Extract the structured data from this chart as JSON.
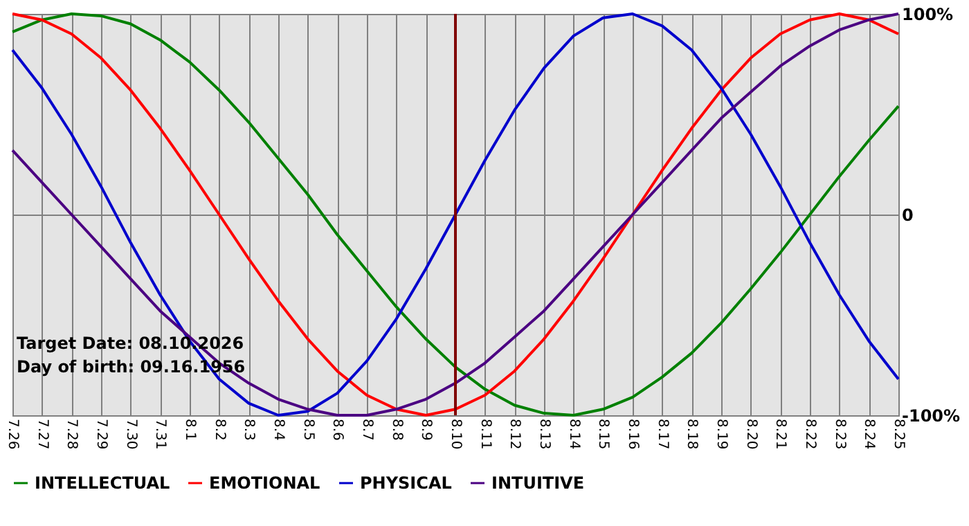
{
  "chart_data": {
    "type": "line",
    "categories": [
      "7.26",
      "7.27",
      "7.28",
      "7.29",
      "7.30",
      "7.31",
      "8.1",
      "8.2",
      "8.3",
      "8.4",
      "8.5",
      "8.6",
      "8.7",
      "8.8",
      "8.9",
      "8.10",
      "8.11",
      "8.12",
      "8.13",
      "8.14",
      "8.15",
      "8.16",
      "8.17",
      "8.18",
      "8.19",
      "8.20",
      "8.21",
      "8.22",
      "8.23",
      "8.24",
      "8.25"
    ],
    "series": [
      {
        "name": "INTELLECTUAL",
        "color": "#008000",
        "values": [
          91,
          97,
          100,
          99,
          95,
          87,
          76,
          62,
          46,
          28,
          10,
          -10,
          -28,
          -46,
          -62,
          -76,
          -87,
          -95,
          -99,
          -100,
          -97,
          -91,
          -81,
          -69,
          -54,
          -37,
          -19,
          0,
          19,
          37,
          54
        ]
      },
      {
        "name": "EMOTIONAL",
        "color": "#ff0000",
        "values": [
          100,
          97,
          90,
          78,
          62,
          43,
          22,
          0,
          -22,
          -43,
          -62,
          -78,
          -90,
          -97,
          -100,
          -97,
          -90,
          -78,
          -62,
          -43,
          -22,
          0,
          22,
          43,
          62,
          78,
          90,
          97,
          100,
          97,
          90
        ]
      },
      {
        "name": "PHYSICAL",
        "color": "#0000cc",
        "values": [
          82,
          63,
          40,
          14,
          -14,
          -40,
          -63,
          -82,
          -94,
          -100,
          -98,
          -89,
          -73,
          -52,
          -27,
          0,
          27,
          52,
          73,
          89,
          98,
          100,
          94,
          82,
          63,
          40,
          14,
          -14,
          -40,
          -63,
          -82
        ]
      },
      {
        "name": "INTUITIVE",
        "color": "#4b0082",
        "values": [
          32,
          16,
          0,
          -16,
          -32,
          -48,
          -61,
          -74,
          -84,
          -92,
          -97,
          -100,
          -100,
          -97,
          -92,
          -84,
          -74,
          -61,
          -48,
          -32,
          -16,
          0,
          16,
          32,
          48,
          61,
          74,
          84,
          92,
          97,
          100
        ]
      }
    ],
    "ylim": [
      -100,
      100
    ],
    "yticks": [
      {
        "value": 100,
        "label": "100%"
      },
      0,
      {
        "value": -100,
        "label": "-100%"
      }
    ],
    "ref_lines": [
      {
        "axis": "x",
        "value": "8.10",
        "color": "#800000"
      }
    ],
    "annotations": [
      "Target Date: 08.10.2026",
      "Day of birth: 09.16.1956"
    ],
    "grid": true,
    "legend": "bottom",
    "marker": "none",
    "line_style": "solid"
  }
}
